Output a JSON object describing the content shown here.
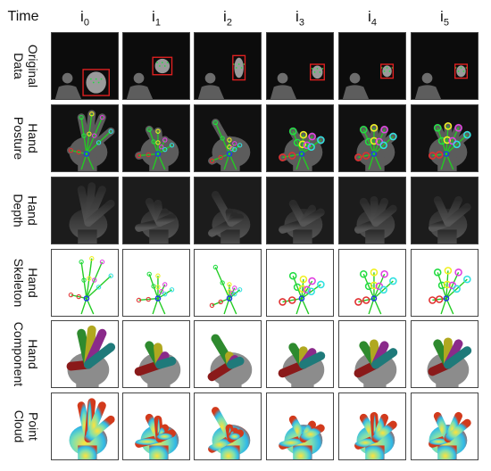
{
  "header": {
    "time_label": "Time",
    "columns": [
      {
        "base": "i",
        "sub": "0"
      },
      {
        "base": "i",
        "sub": "1"
      },
      {
        "base": "i",
        "sub": "2"
      },
      {
        "base": "i",
        "sub": "3"
      },
      {
        "base": "i",
        "sub": "4"
      },
      {
        "base": "i",
        "sub": "5"
      }
    ]
  },
  "rows": [
    {
      "key": "original",
      "label": "Original\nData"
    },
    {
      "key": "posture",
      "label": "Hand\nPosture"
    },
    {
      "key": "depth",
      "label": "Hand\nDepth"
    },
    {
      "key": "skeleton",
      "label": "Hand\nSkeleton"
    },
    {
      "key": "component",
      "label": "Hand\nComponent"
    },
    {
      "key": "cloud",
      "label": "Point\nCloud"
    }
  ],
  "colors": {
    "bbox": "#e02020",
    "skeleton_line": "#22cc22",
    "joint_green": "#22dd44",
    "joint_yellow": "#f0f020",
    "joint_magenta": "#e040e0",
    "joint_cyan": "#30e0e0",
    "joint_red": "#e03030",
    "joint_blue": "#2040e0",
    "component_palm": "#8c8c8c",
    "component_thumb": "#8a1a1a",
    "component_index": "#2e8a2e",
    "component_middle": "#b0a820",
    "component_ring": "#8a2a8a",
    "component_little": "#1f7a7a"
  }
}
